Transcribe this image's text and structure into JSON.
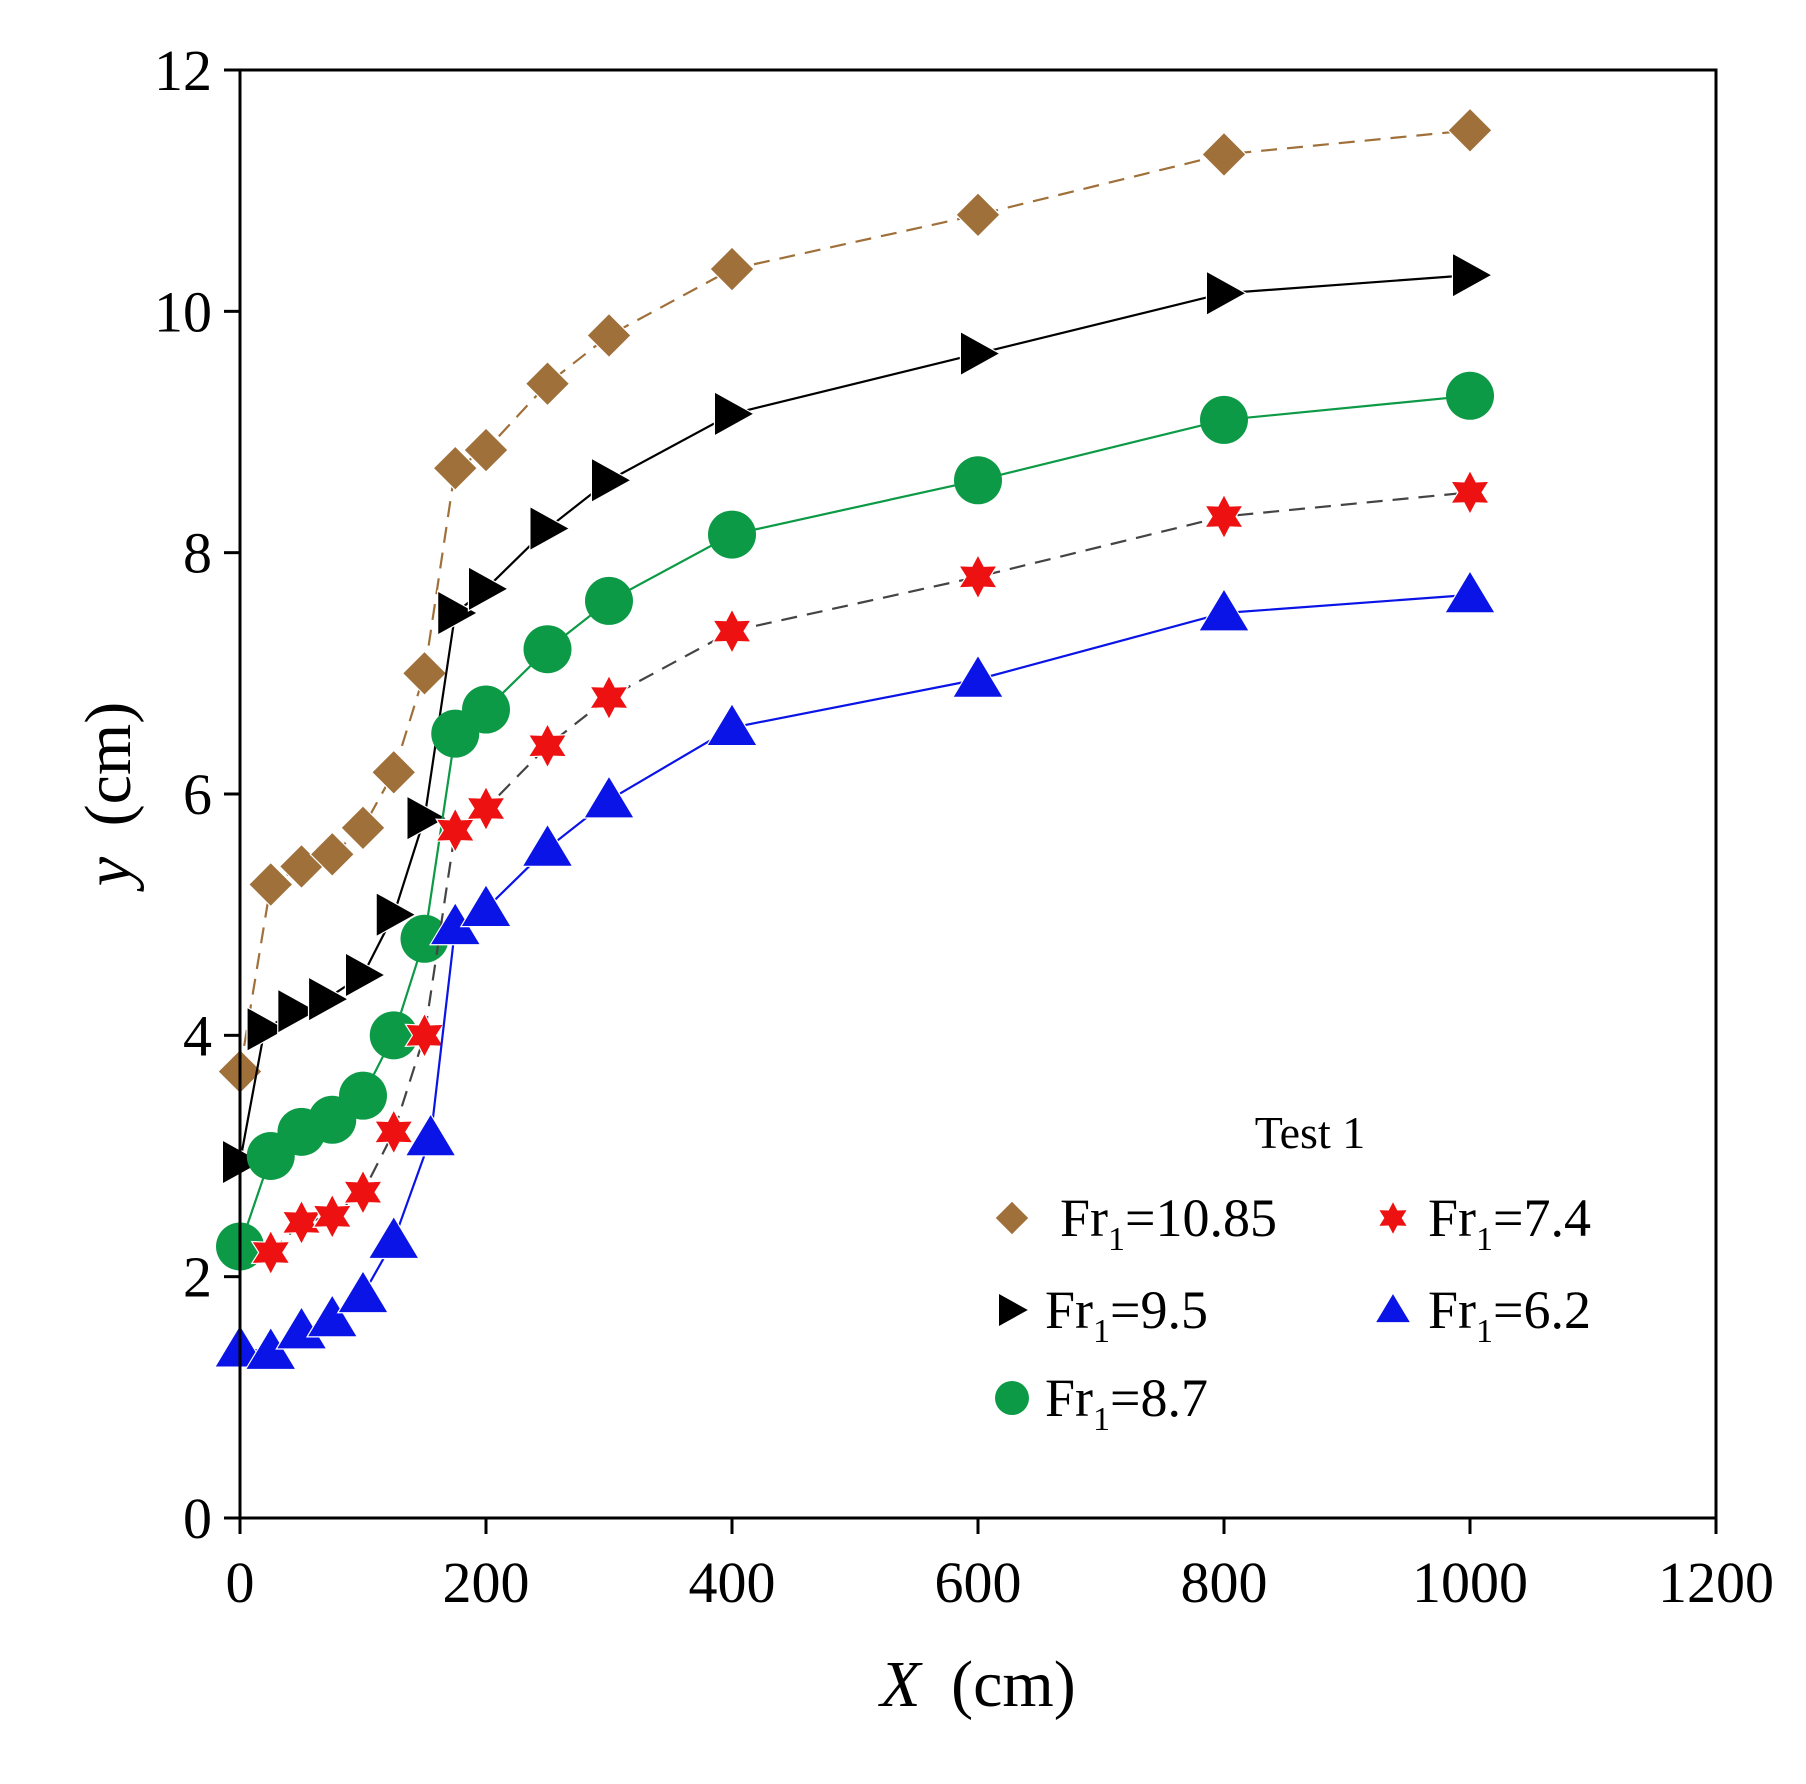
{
  "chart_data": {
    "type": "line",
    "title": "",
    "xlabel": "X",
    "xlabel_unit": "(cm)",
    "ylabel": "y",
    "ylabel_unit": "(cm)",
    "xlim": [
      0,
      1200
    ],
    "ylim": [
      0,
      12
    ],
    "xticks": [
      0,
      200,
      400,
      600,
      800,
      1000,
      1200
    ],
    "yticks": [
      0,
      2,
      4,
      6,
      8,
      10,
      12
    ],
    "grid": false,
    "legend": {
      "title": "Test 1",
      "placement": "bottom-right"
    },
    "series": [
      {
        "name": "Fr1=10.85",
        "prefix": "Fr",
        "sub": "1",
        "suffix": "=10.85",
        "marker": "diamond",
        "color": "#a0703a",
        "line": "dashed",
        "x": [
          0,
          25,
          50,
          75,
          100,
          125,
          150,
          175,
          200,
          250,
          300,
          400,
          600,
          800,
          1000
        ],
        "y": [
          3.7,
          5.25,
          5.4,
          5.5,
          5.72,
          6.18,
          7.0,
          8.7,
          8.85,
          9.4,
          9.8,
          10.35,
          10.8,
          11.3,
          11.5
        ]
      },
      {
        "name": "Fr1=9.5",
        "prefix": "Fr",
        "sub": "1",
        "suffix": "=9.5",
        "marker": "triangle-right",
        "color": "#000000",
        "line": "solid",
        "x": [
          0,
          20,
          45,
          70,
          100,
          125,
          150,
          175,
          200,
          250,
          300,
          400,
          600,
          800,
          1000
        ],
        "y": [
          2.95,
          4.05,
          4.2,
          4.3,
          4.5,
          5.0,
          5.8,
          7.5,
          7.7,
          8.2,
          8.6,
          9.15,
          9.65,
          10.15,
          10.3
        ]
      },
      {
        "name": "Fr1=8.7",
        "prefix": "Fr",
        "sub": "1",
        "suffix": "=8.7",
        "marker": "circle",
        "color": "#0c9a46",
        "line": "solid",
        "x": [
          0,
          25,
          50,
          75,
          100,
          125,
          150,
          175,
          200,
          250,
          300,
          400,
          600,
          800,
          1000
        ],
        "y": [
          2.25,
          3.0,
          3.2,
          3.3,
          3.5,
          4.0,
          4.8,
          6.5,
          6.7,
          7.2,
          7.6,
          8.15,
          8.6,
          9.1,
          9.3
        ]
      },
      {
        "name": "Fr1=7.4",
        "prefix": "Fr",
        "sub": "1",
        "suffix": "=7.4",
        "marker": "star",
        "color": "#ee1111",
        "line": "dashed",
        "x": [
          25,
          50,
          75,
          100,
          125,
          150,
          175,
          200,
          250,
          300,
          400,
          600,
          800,
          1000
        ],
        "y": [
          2.2,
          2.45,
          2.5,
          2.7,
          3.2,
          4.0,
          5.7,
          5.88,
          6.4,
          6.8,
          7.35,
          7.8,
          8.3,
          8.5
        ]
      },
      {
        "name": "Fr1=6.2",
        "prefix": "Fr",
        "sub": "1",
        "suffix": "=6.2",
        "marker": "triangle-up",
        "color": "#0a14e6",
        "line": "solid",
        "x": [
          0,
          25,
          50,
          75,
          100,
          125,
          155,
          175,
          200,
          250,
          300,
          400,
          600,
          800,
          1000
        ],
        "y": [
          1.4,
          1.38,
          1.55,
          1.65,
          1.85,
          2.3,
          3.15,
          4.9,
          5.05,
          5.55,
          5.95,
          6.55,
          6.95,
          7.5,
          7.65
        ]
      }
    ]
  }
}
